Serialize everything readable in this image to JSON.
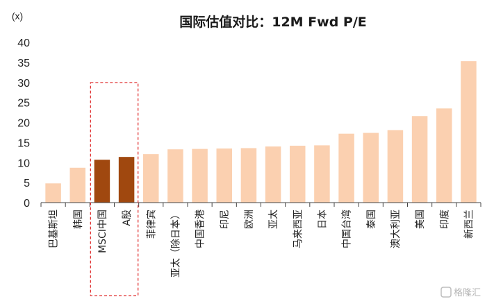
{
  "chart_data": {
    "type": "bar",
    "title": "国际估值对比：12M Fwd P/E",
    "ylabel": "(x)",
    "xlabel": "",
    "ylim": [
      0,
      40
    ],
    "yticks": [
      0,
      5,
      10,
      15,
      20,
      25,
      30,
      35,
      40
    ],
    "grid": false,
    "categories": [
      "巴基斯坦",
      "韩国",
      "MSCI中国",
      "A股",
      "菲律宾",
      "亚太（除日本）",
      "中国香港",
      "印尼",
      "欧洲",
      "亚太",
      "马来西亚",
      "日本",
      "中国台湾",
      "泰国",
      "澳大利亚",
      "美国",
      "印度",
      "新西兰"
    ],
    "values": [
      4.8,
      8.7,
      10.7,
      11.4,
      12.1,
      13.3,
      13.4,
      13.5,
      13.6,
      14.0,
      14.2,
      14.3,
      17.2,
      17.4,
      18.1,
      21.6,
      23.5,
      35.3
    ],
    "highlighted": [
      "MSCI中国",
      "A股"
    ],
    "colors": {
      "default": "#fbd0b0",
      "highlight": "#a0480f",
      "box": "#e03030"
    }
  },
  "watermark": "格隆汇"
}
